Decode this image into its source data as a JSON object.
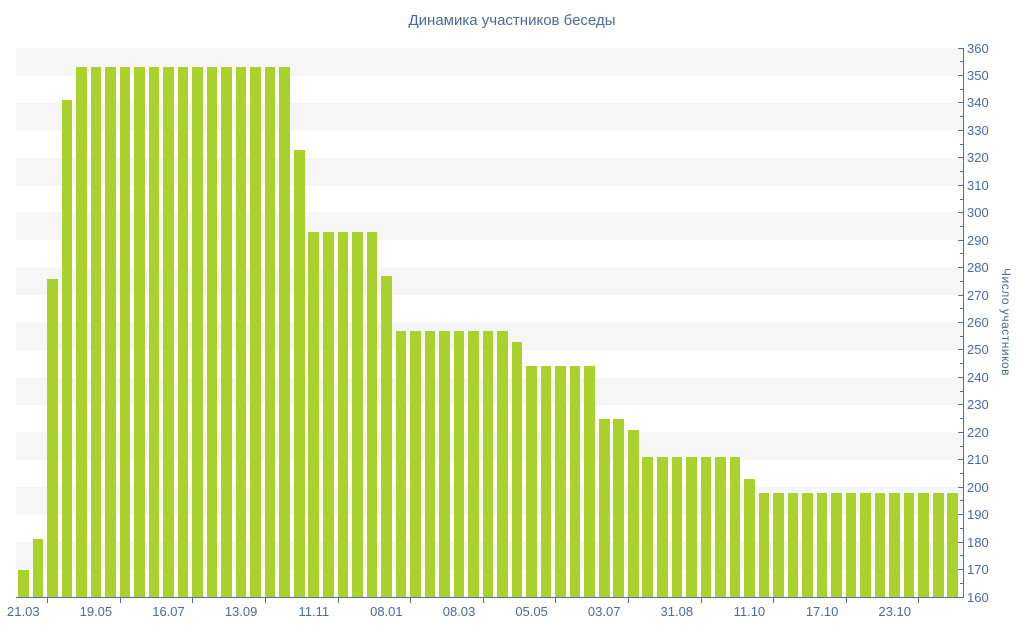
{
  "chart_data": {
    "type": "bar",
    "title": "Динамика участников беседы",
    "ylabel": "Число участников",
    "xlabel": "",
    "ylim": [
      160,
      360
    ],
    "ytick_step": 10,
    "ytick_minor_step": 5,
    "grid": "horizontal-stripes",
    "legend": "none",
    "values": [
      170,
      181,
      276,
      341,
      353,
      353,
      353,
      353,
      353,
      353,
      353,
      353,
      353,
      353,
      353,
      353,
      353,
      353,
      353,
      323,
      293,
      293,
      293,
      293,
      293,
      277,
      257,
      257,
      257,
      257,
      257,
      257,
      257,
      257,
      253,
      244,
      244,
      244,
      244,
      244,
      225,
      225,
      221,
      211,
      211,
      211,
      211,
      211,
      211,
      211,
      203,
      198,
      198,
      198,
      198,
      198,
      198,
      198,
      198,
      198,
      198,
      198,
      198,
      198,
      198
    ],
    "x_tick_labels": [
      {
        "text": "21.03",
        "bar": 1
      },
      {
        "text": "19.05",
        "bar": 6
      },
      {
        "text": "16.07",
        "bar": 11
      },
      {
        "text": "13.09",
        "bar": 16
      },
      {
        "text": "11.11",
        "bar": 21
      },
      {
        "text": "08.01",
        "bar": 26
      },
      {
        "text": "08.03",
        "bar": 31
      },
      {
        "text": "05.05",
        "bar": 36
      },
      {
        "text": "03.07",
        "bar": 41
      },
      {
        "text": "31.08",
        "bar": 46
      },
      {
        "text": "11.10",
        "bar": 51
      },
      {
        "text": "17.10",
        "bar": 56
      },
      {
        "text": "23.10",
        "bar": 61
      }
    ]
  },
  "colors": {
    "bar": "#a9d32c",
    "stripe": "#f6f6f6",
    "axis": "#5b6e96",
    "tick_label": "#4a6b9b",
    "title": "#4a6b9b",
    "background": "#ffffff"
  }
}
